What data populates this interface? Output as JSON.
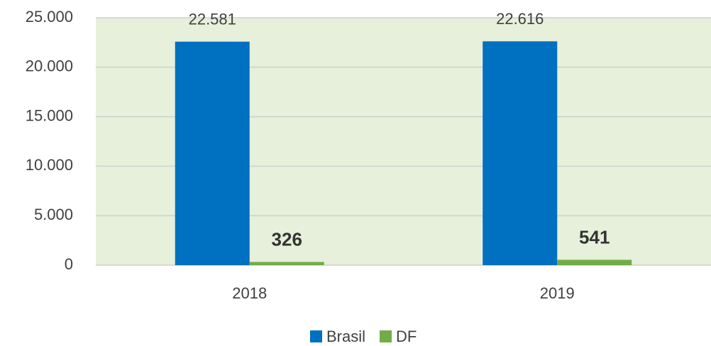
{
  "chart_data": {
    "type": "bar",
    "categories": [
      "2018",
      "2019"
    ],
    "series": [
      {
        "name": "Brasil",
        "color": "#0070c0",
        "values": [
          22581,
          22616
        ],
        "value_labels": [
          "22.581",
          "22.616"
        ]
      },
      {
        "name": "DF",
        "color": "#70ad47",
        "values": [
          326,
          541
        ],
        "value_labels": [
          "326",
          "541"
        ]
      }
    ],
    "ylim": [
      0,
      25000
    ],
    "yticks": [
      0,
      {
        "value": 5000,
        "label": "5.000"
      },
      {
        "value": 10000,
        "label": "10.000"
      },
      {
        "value": 15000,
        "label": "15.000"
      },
      {
        "value": 20000,
        "label": "20.000"
      },
      {
        "value": 25000,
        "label": "25.000"
      }
    ],
    "grid": true,
    "legend": "bottom"
  }
}
